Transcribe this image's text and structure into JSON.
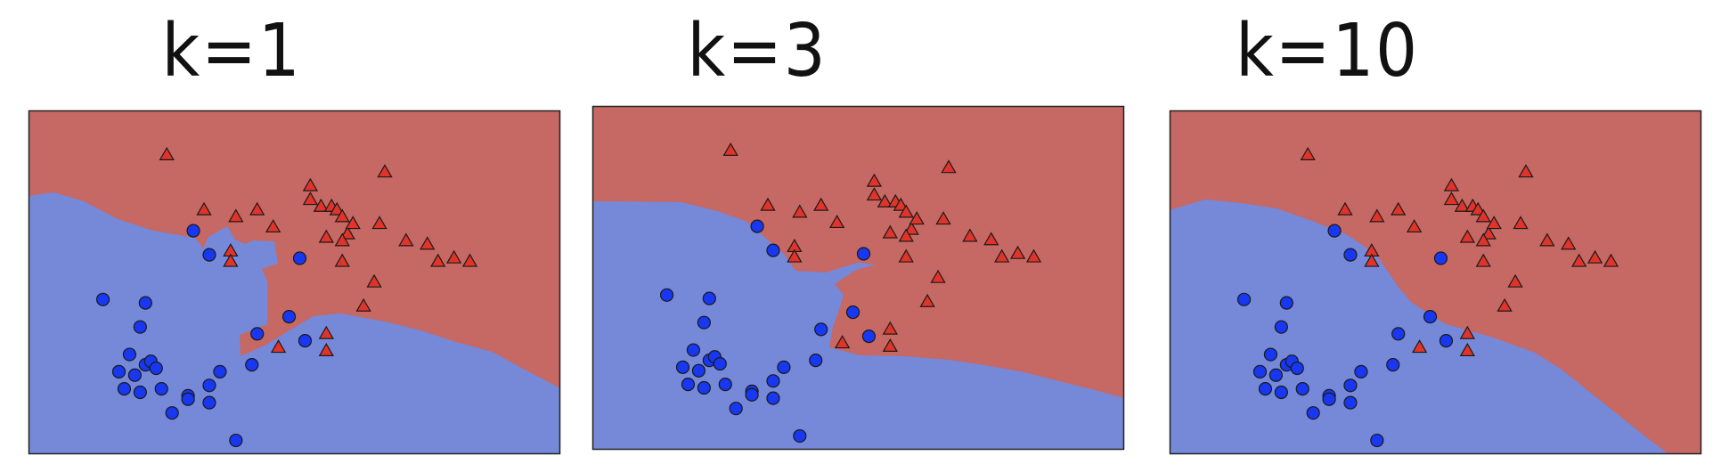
{
  "colors": {
    "blue_region": "#7589d8",
    "red_region": "#c66864",
    "blue_point": "#1837f0",
    "red_point": "#e0342a",
    "frame": "#222222"
  },
  "chart_data": [
    {
      "type": "scatter",
      "title": "k=1",
      "xlabel": "",
      "ylabel": "",
      "xlim": [
        0,
        100
      ],
      "ylim": [
        0,
        100
      ],
      "grid": false,
      "series": [
        {
          "marker": "circle",
          "color": "blue",
          "points": [
            [
              14,
              45
            ],
            [
              21,
              37
            ],
            [
              22,
              44
            ],
            [
              19,
              29
            ],
            [
              22,
              26
            ],
            [
              23,
              27
            ],
            [
              24,
              25
            ],
            [
              25,
              19
            ],
            [
              20,
              23
            ],
            [
              17,
              24
            ],
            [
              18,
              19
            ],
            [
              21,
              18
            ],
            [
              30,
              17
            ],
            [
              27,
              12
            ],
            [
              30,
              16
            ],
            [
              34,
              20
            ],
            [
              34,
              15
            ],
            [
              36,
              24
            ],
            [
              42,
              26
            ],
            [
              39,
              4
            ],
            [
              43,
              35
            ],
            [
              52,
              33
            ],
            [
              49,
              40
            ],
            [
              34,
              58
            ],
            [
              31,
              65
            ],
            [
              51,
              57
            ]
          ]
        },
        {
          "marker": "triangle",
          "color": "red",
          "points": [
            [
              26,
              87
            ],
            [
              33,
              71
            ],
            [
              39,
              69
            ],
            [
              43,
              71
            ],
            [
              46,
              66
            ],
            [
              53,
              78
            ],
            [
              53,
              74
            ],
            [
              55,
              72
            ],
            [
              57,
              72
            ],
            [
              58,
              71
            ],
            [
              59,
              69
            ],
            [
              60,
              64
            ],
            [
              61,
              67
            ],
            [
              56,
              63
            ],
            [
              59,
              62
            ],
            [
              66,
              67
            ],
            [
              67,
              82
            ],
            [
              71,
              62
            ],
            [
              75,
              61
            ],
            [
              80,
              57
            ],
            [
              83,
              56
            ],
            [
              77,
              56
            ],
            [
              63,
              43
            ],
            [
              56,
              35
            ],
            [
              56,
              30
            ],
            [
              65,
              50
            ],
            [
              38,
              59
            ],
            [
              38,
              56
            ],
            [
              59,
              56
            ],
            [
              47,
              31
            ]
          ]
        }
      ]
    },
    {
      "type": "scatter",
      "title": "k=3",
      "xlabel": "",
      "ylabel": "",
      "xlim": [
        0,
        100
      ],
      "ylim": [
        0,
        100
      ],
      "grid": false,
      "series": [
        {
          "marker": "circle",
          "color": "blue",
          "points": [
            [
              14,
              45
            ],
            [
              21,
              37
            ],
            [
              22,
              44
            ],
            [
              19,
              29
            ],
            [
              22,
              26
            ],
            [
              23,
              27
            ],
            [
              24,
              25
            ],
            [
              25,
              19
            ],
            [
              20,
              23
            ],
            [
              17,
              24
            ],
            [
              18,
              19
            ],
            [
              21,
              18
            ],
            [
              30,
              17
            ],
            [
              27,
              12
            ],
            [
              30,
              16
            ],
            [
              34,
              20
            ],
            [
              34,
              15
            ],
            [
              36,
              24
            ],
            [
              42,
              26
            ],
            [
              39,
              4
            ],
            [
              43,
              35
            ],
            [
              52,
              33
            ],
            [
              49,
              40
            ],
            [
              34,
              58
            ],
            [
              31,
              65
            ],
            [
              51,
              57
            ]
          ]
        },
        {
          "marker": "triangle",
          "color": "red",
          "points": [
            [
              26,
              87
            ],
            [
              33,
              71
            ],
            [
              39,
              69
            ],
            [
              43,
              71
            ],
            [
              46,
              66
            ],
            [
              53,
              78
            ],
            [
              53,
              74
            ],
            [
              55,
              72
            ],
            [
              57,
              72
            ],
            [
              58,
              71
            ],
            [
              59,
              69
            ],
            [
              60,
              64
            ],
            [
              61,
              67
            ],
            [
              56,
              63
            ],
            [
              59,
              62
            ],
            [
              66,
              67
            ],
            [
              67,
              82
            ],
            [
              71,
              62
            ],
            [
              75,
              61
            ],
            [
              80,
              57
            ],
            [
              83,
              56
            ],
            [
              77,
              56
            ],
            [
              63,
              43
            ],
            [
              56,
              35
            ],
            [
              56,
              30
            ],
            [
              65,
              50
            ],
            [
              38,
              59
            ],
            [
              38,
              56
            ],
            [
              59,
              56
            ],
            [
              47,
              31
            ]
          ]
        }
      ]
    },
    {
      "type": "scatter",
      "title": "k=10",
      "xlabel": "",
      "ylabel": "",
      "xlim": [
        0,
        100
      ],
      "ylim": [
        0,
        100
      ],
      "grid": false,
      "series": [
        {
          "marker": "circle",
          "color": "blue",
          "points": [
            [
              14,
              45
            ],
            [
              21,
              37
            ],
            [
              22,
              44
            ],
            [
              19,
              29
            ],
            [
              22,
              26
            ],
            [
              23,
              27
            ],
            [
              24,
              25
            ],
            [
              25,
              19
            ],
            [
              20,
              23
            ],
            [
              17,
              24
            ],
            [
              18,
              19
            ],
            [
              21,
              18
            ],
            [
              30,
              17
            ],
            [
              27,
              12
            ],
            [
              30,
              16
            ],
            [
              34,
              20
            ],
            [
              34,
              15
            ],
            [
              36,
              24
            ],
            [
              42,
              26
            ],
            [
              39,
              4
            ],
            [
              43,
              35
            ],
            [
              52,
              33
            ],
            [
              49,
              40
            ],
            [
              34,
              58
            ],
            [
              31,
              65
            ],
            [
              51,
              57
            ]
          ]
        },
        {
          "marker": "triangle",
          "color": "red",
          "points": [
            [
              26,
              87
            ],
            [
              33,
              71
            ],
            [
              39,
              69
            ],
            [
              43,
              71
            ],
            [
              46,
              66
            ],
            [
              53,
              78
            ],
            [
              53,
              74
            ],
            [
              55,
              72
            ],
            [
              57,
              72
            ],
            [
              58,
              71
            ],
            [
              59,
              69
            ],
            [
              60,
              64
            ],
            [
              61,
              67
            ],
            [
              56,
              63
            ],
            [
              59,
              62
            ],
            [
              66,
              67
            ],
            [
              67,
              82
            ],
            [
              71,
              62
            ],
            [
              75,
              61
            ],
            [
              80,
              57
            ],
            [
              83,
              56
            ],
            [
              77,
              56
            ],
            [
              63,
              43
            ],
            [
              56,
              35
            ],
            [
              56,
              30
            ],
            [
              65,
              50
            ],
            [
              38,
              59
            ],
            [
              38,
              56
            ],
            [
              59,
              56
            ],
            [
              47,
              31
            ]
          ]
        }
      ]
    }
  ]
}
